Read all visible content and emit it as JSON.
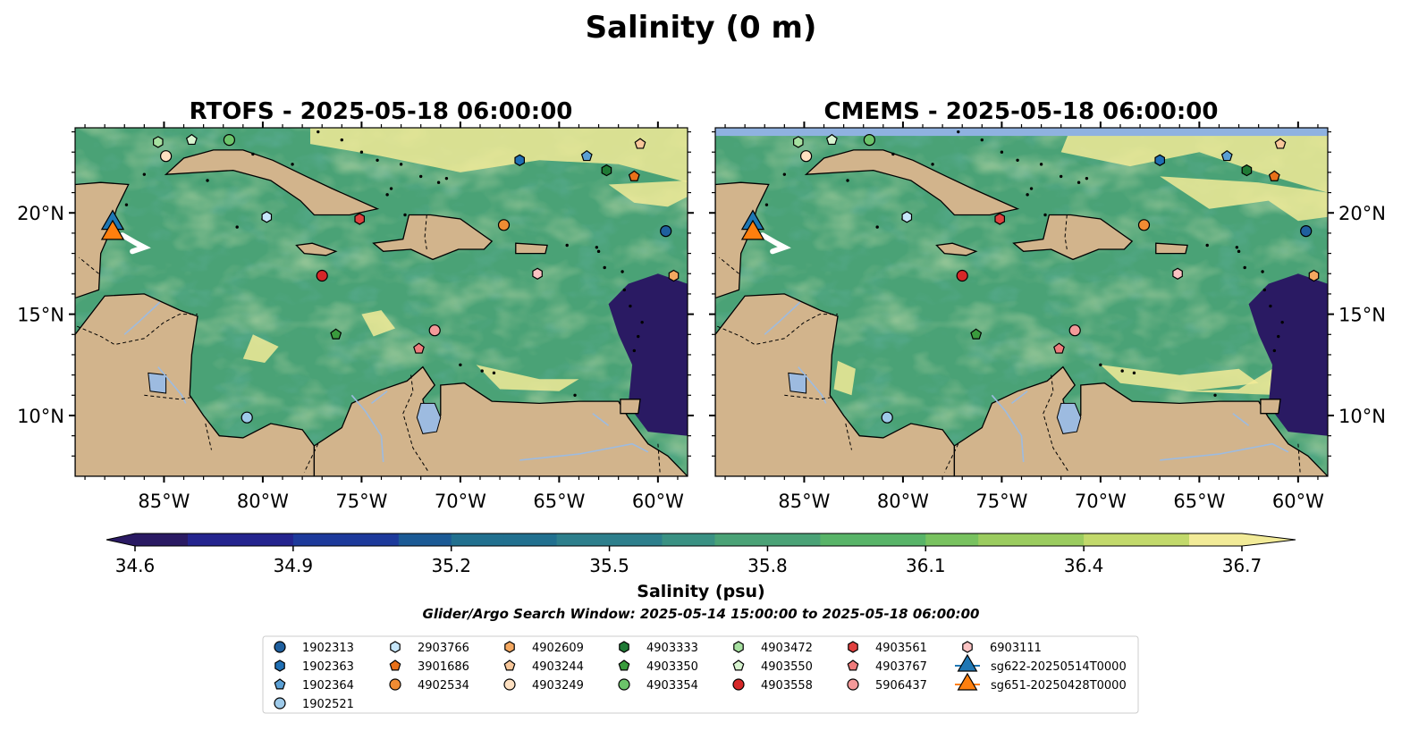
{
  "figure": {
    "title": "Salinity (0 m)",
    "subtitle": "Glider/Argo Search Window: 2025-05-14 15:00:00 to 2025-05-18 06:00:00"
  },
  "panels": [
    {
      "id": "rtofs",
      "title": "RTOFS - 2025-05-18 06:00:00"
    },
    {
      "id": "cmems",
      "title": "CMEMS - 2025-05-18 06:00:00"
    }
  ],
  "axes": {
    "lon_ticks": [
      "85°W",
      "80°W",
      "75°W",
      "70°W",
      "65°W",
      "60°W"
    ],
    "lat_ticks": [
      "20°N",
      "15°N",
      "10°N"
    ],
    "lon_range": [
      -89.5,
      -58.5
    ],
    "lat_range": [
      7.0,
      24.2
    ]
  },
  "colorbar": {
    "label": "Salinity (psu)",
    "ticks": [
      "34.6",
      "34.9",
      "35.2",
      "35.5",
      "35.8",
      "36.1",
      "36.4",
      "36.7"
    ],
    "range": [
      34.6,
      36.7
    ],
    "extend": "both",
    "colormap": [
      "#2a1a63",
      "#24248e",
      "#1d3a9b",
      "#1b5a95",
      "#21708f",
      "#2d7f8c",
      "#3a9183",
      "#4aa276",
      "#58b468",
      "#78c25f",
      "#9bcc5f",
      "#c2d96b",
      "#f2eb98"
    ]
  },
  "colors": {
    "land": "#d2b48c",
    "deep_ocean": "#2a1a63",
    "ocean_mid": "#4aa276",
    "lakes": "#9dbbe0",
    "cmems_top_band": "#8fb2e0"
  },
  "legend": {
    "columns": [
      [
        {
          "label": "1902313",
          "marker": "circle",
          "color": "#1f5f9e"
        },
        {
          "label": "1902363",
          "marker": "hexagon",
          "color": "#1f6fb4"
        },
        {
          "label": "1902364",
          "marker": "pentagon",
          "color": "#5a9fd4"
        },
        {
          "label": "1902521",
          "marker": "circle",
          "color": "#9ecae9"
        }
      ],
      [
        {
          "label": "2903766",
          "marker": "hexagon",
          "color": "#c6e6fa"
        },
        {
          "label": "3901686",
          "marker": "pentagon",
          "color": "#e8711a"
        },
        {
          "label": "4902534",
          "marker": "circle",
          "color": "#f08c33"
        }
      ],
      [
        {
          "label": "4902609",
          "marker": "hexagon",
          "color": "#f4a860"
        },
        {
          "label": "4903244",
          "marker": "pentagon",
          "color": "#f8c79a"
        },
        {
          "label": "4903249",
          "marker": "circle",
          "color": "#fde0c1"
        }
      ],
      [
        {
          "label": "4903333",
          "marker": "hexagon",
          "color": "#1f7a35"
        },
        {
          "label": "4903350",
          "marker": "pentagon",
          "color": "#3a9b3d"
        },
        {
          "label": "4903354",
          "marker": "circle",
          "color": "#6cc46a"
        }
      ],
      [
        {
          "label": "4903472",
          "marker": "hexagon",
          "color": "#a6e0a0"
        },
        {
          "label": "4903550",
          "marker": "pentagon",
          "color": "#d8f4d0"
        },
        {
          "label": "4903558",
          "marker": "circle",
          "color": "#d62728"
        }
      ],
      [
        {
          "label": "4903561",
          "marker": "hexagon",
          "color": "#e0403f"
        },
        {
          "label": "4903767",
          "marker": "pentagon",
          "color": "#ef7b7b"
        },
        {
          "label": "5906437",
          "marker": "circle",
          "color": "#f49a9a"
        }
      ],
      [
        {
          "label": "6903111",
          "marker": "hexagon",
          "color": "#fbc3c3"
        },
        {
          "label": "sg622-20250514T0000",
          "marker": "triangle",
          "color": "#1f77b4"
        },
        {
          "label": "sg651-20250428T0000",
          "marker": "triangle",
          "color": "#ff7f0e"
        }
      ]
    ]
  },
  "floats": [
    {
      "id": "1902313",
      "lon": -59.6,
      "lat": 19.1
    },
    {
      "id": "1902363",
      "lon": -67.0,
      "lat": 22.6
    },
    {
      "id": "1902364",
      "lon": -63.6,
      "lat": 22.8
    },
    {
      "id": "1902521",
      "lon": -80.8,
      "lat": 9.9
    },
    {
      "id": "2903766",
      "lon": -79.8,
      "lat": 19.8
    },
    {
      "id": "3901686",
      "lon": -61.2,
      "lat": 21.8
    },
    {
      "id": "4902534",
      "lon": -67.8,
      "lat": 19.4
    },
    {
      "id": "4902609",
      "lon": -59.2,
      "lat": 16.9
    },
    {
      "id": "4903244",
      "lon": -60.9,
      "lat": 23.4
    },
    {
      "id": "4903249",
      "lon": -84.9,
      "lat": 22.8
    },
    {
      "id": "4903333",
      "lon": -62.6,
      "lat": 22.1
    },
    {
      "id": "4903350",
      "lon": -76.3,
      "lat": 14.0
    },
    {
      "id": "4903354",
      "lon": -81.7,
      "lat": 23.6
    },
    {
      "id": "4903472",
      "lon": -85.3,
      "lat": 23.5
    },
    {
      "id": "4903550",
      "lon": -83.6,
      "lat": 23.6
    },
    {
      "id": "4903558",
      "lon": -77.0,
      "lat": 16.9
    },
    {
      "id": "4903561",
      "lon": -75.1,
      "lat": 19.7
    },
    {
      "id": "4903767",
      "lon": -72.1,
      "lat": 13.3
    },
    {
      "id": "5906437",
      "lon": -71.3,
      "lat": 14.2
    },
    {
      "id": "6903111",
      "lon": -66.1,
      "lat": 17.0
    }
  ],
  "gliders": [
    {
      "id": "sg622-20250514T0000",
      "lon": -87.6,
      "lat": 19.5
    },
    {
      "id": "sg651-20250428T0000",
      "lon": -87.6,
      "lat": 19.0
    }
  ]
}
